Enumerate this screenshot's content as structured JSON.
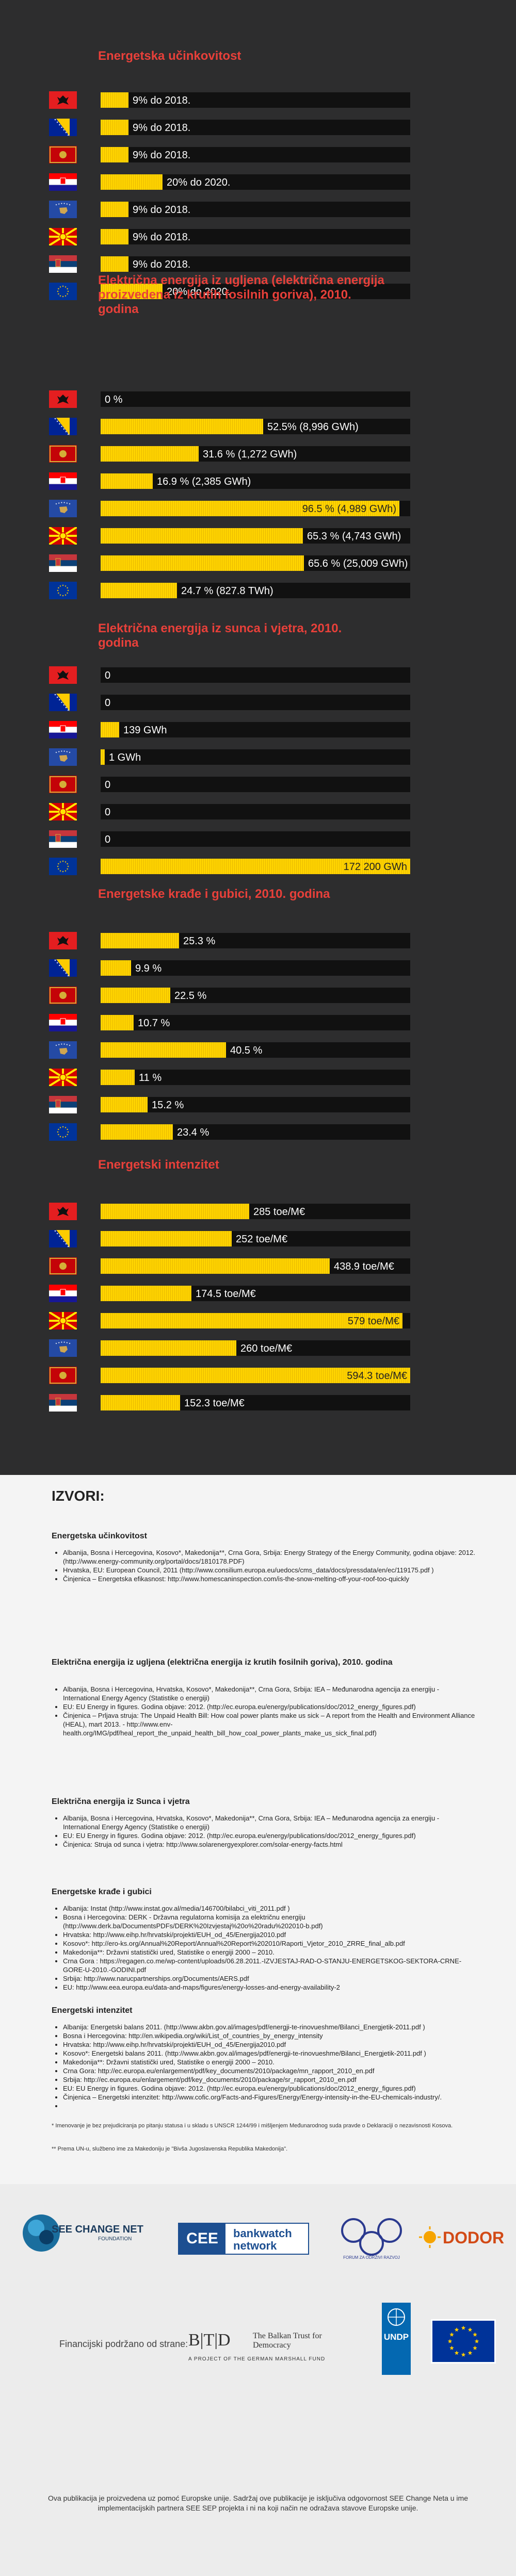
{
  "sections": [
    {
      "title": "Energetska učinkovitost",
      "rows": [
        {
          "flag": "albania",
          "pct": 0.09,
          "label": "9% do 2018."
        },
        {
          "flag": "bih",
          "pct": 0.09,
          "label": "9% do 2018."
        },
        {
          "flag": "montenegro",
          "pct": 0.09,
          "label": "9% do 2018."
        },
        {
          "flag": "croatia",
          "pct": 0.2,
          "label": "20% do 2020."
        },
        {
          "flag": "kosovo",
          "pct": 0.09,
          "label": "9% do 2018."
        },
        {
          "flag": "macedonia",
          "pct": 0.09,
          "label": "9% do 2018."
        },
        {
          "flag": "serbia",
          "pct": 0.09,
          "label": "9% do 2018."
        },
        {
          "flag": "eu",
          "pct": 0.2,
          "label": "20% do 2020."
        }
      ]
    },
    {
      "title": "Električna energija iz ugljena (električna energija proizvedena iz krutih fosilnih goriva), 2010. godina",
      "rows": [
        {
          "flag": "albania",
          "pct": 0.0,
          "label": "0 %"
        },
        {
          "flag": "bih",
          "pct": 0.525,
          "label": "52.5% (8,996 GWh)"
        },
        {
          "flag": "montenegro",
          "pct": 0.316,
          "label": "31.6 % (1,272 GWh)"
        },
        {
          "flag": "croatia",
          "pct": 0.169,
          "label": "16.9 % (2,385 GWh)"
        },
        {
          "flag": "kosovo",
          "pct": 0.965,
          "label": "96.5 % (4,989 GWh)"
        },
        {
          "flag": "macedonia",
          "pct": 0.653,
          "label": "65.3 % (4,743 GWh)"
        },
        {
          "flag": "serbia",
          "pct": 0.656,
          "label": "65.6 % (25,009 GWh)"
        },
        {
          "flag": "eu",
          "pct": 0.247,
          "label": "24.7 % (827.8 TWh)"
        }
      ]
    },
    {
      "title": "Električna energija iz sunca i vjetra, 2010. godina",
      "rows": [
        {
          "flag": "albania",
          "pct": 0.0,
          "label": "0"
        },
        {
          "flag": "bih",
          "pct": 0.0,
          "label": "0"
        },
        {
          "flag": "croatia",
          "pct": 0.06,
          "label": "139 GWh"
        },
        {
          "flag": "kosovo",
          "pct": 0.005,
          "label": "1 GWh"
        },
        {
          "flag": "montenegro",
          "pct": 0.0,
          "label": "0"
        },
        {
          "flag": "macedonia",
          "pct": 0.0,
          "label": "0"
        },
        {
          "flag": "serbia",
          "pct": 0.0,
          "label": "0"
        },
        {
          "flag": "eu",
          "pct": 1.0,
          "label": "172 200 GWh"
        }
      ]
    },
    {
      "title": "Energetske krađe i gubici, 2010. godina",
      "rows": [
        {
          "flag": "albania",
          "pct": 0.253,
          "label": "25.3 %"
        },
        {
          "flag": "bih",
          "pct": 0.099,
          "label": "9.9 %"
        },
        {
          "flag": "montenegro",
          "pct": 0.225,
          "label": "22.5 %"
        },
        {
          "flag": "croatia",
          "pct": 0.107,
          "label": "10.7 %"
        },
        {
          "flag": "kosovo",
          "pct": 0.405,
          "label": "40.5 %"
        },
        {
          "flag": "macedonia",
          "pct": 0.11,
          "label": "11 %"
        },
        {
          "flag": "serbia",
          "pct": 0.152,
          "label": "15.2 %"
        },
        {
          "flag": "eu",
          "pct": 0.234,
          "label": "23.4 %"
        }
      ]
    },
    {
      "title": "Energetski intenzitet",
      "rows": [
        {
          "flag": "albania",
          "pct": 0.48,
          "label": "285 toe/M€"
        },
        {
          "flag": "bih",
          "pct": 0.424,
          "label": "252 toe/M€"
        },
        {
          "flag": "montenegro",
          "pct": 0.74,
          "label": "438.9 toe/M€"
        },
        {
          "flag": "croatia",
          "pct": 0.294,
          "label": "174.5 toe/M€"
        },
        {
          "flag": "macedonia",
          "pct": 0.975,
          "label": "579 toe/M€"
        },
        {
          "flag": "kosovo",
          "pct": 0.438,
          "label": "260 toe/M€"
        },
        {
          "flag": "montenegro2",
          "pct": 1.0,
          "label": "594.3 toe/M€"
        },
        {
          "flag": "serbia",
          "pct": 0.256,
          "label": "152.3 toe/M€"
        }
      ]
    }
  ],
  "sources": {
    "heading": "IZVORI:",
    "groups": [
      {
        "title": "Energetska učinkovitost",
        "items": [
          "Albanija, Bosna i Hercegovina, Kosovo*, Makedonija**, Crna Gora, Srbija: Energy Strategy of the Energy Community, godina objave: 2012. (http://www.energy-community.org/portal/docs/1810178.PDF)",
          "Hrvatska, EU: European Council, 2011 (http://www.consilium.europa.eu/uedocs/cms_data/docs/pressdata/en/ec/119175.pdf )",
          "Činjenica – Energetska efikasnost: http://www.homescaninspection.com/is-the-snow-melting-off-your-roof-too-quickly"
        ]
      },
      {
        "title": "Električna energija iz ugljena (električna energija iz krutih fosilnih goriva), 2010. godina",
        "items": [
          "Albanija, Bosna i Hercegovina, Hrvatska, Kosovo*, Makedonija**, Crna Gora, Srbija: IEA – Međunarodna agencija za energiju - International Energy Agency (Statistike o energiji)",
          "EU: EU Energy in figures. Godina objave: 2012. (http://ec.europa.eu/energy/publications/doc/2012_energy_figures.pdf)",
          "Činjenica – Prljava struja: The Unpaid Health Bill: How coal power plants make us sick – A report from the Health and Environment Alliance (HEAL), mart 2013. - http://www.env-health.org/IMG/pdf/heal_report_the_unpaid_health_bill_how_coal_power_plants_make_us_sick_final.pdf)"
        ]
      },
      {
        "title": "Električna energija iz Sunca i vjetra",
        "items": [
          "Albanija, Bosna i Hercegovina, Hrvatska, Kosovo*, Makedonija**, Crna Gora, Srbija: IEA – Međunarodna agencija za energiju - International Energy Agency (Statistike o energiji)",
          "EU: EU Energy in figures. Godina objave: 2012. (http://ec.europa.eu/energy/publications/doc/2012_energy_figures.pdf)",
          "Činjenica: Struja od sunca i vjetra: http://www.solarenergyexplorer.com/solar-energy-facts.html"
        ]
      },
      {
        "title": "Energetske krađe i gubici",
        "items": [
          "Albanija: Instat (http://www.instat.gov.al/media/146700/bilabci_viti_2011.pdf )",
          "Bosna i Hercegovina: DERK - Državna regulatorna komisija za električnu energiju (http://www.derk.ba/DocumentsPDFs/DERK%20Izvjestaj%20o%20radu%202010-b.pdf)",
          "Hrvatska: http://www.eihp.hr/hrvatski/projekti/EUH_od_45/Energija2010.pdf",
          "Kosovo*: http://ero-ks.org/Annual%20Report/Annual%20Report%202010/Raporti_Vjetor_2010_ZRRE_final_alb.pdf",
          "Makedonija**: Državni statistički ured, Statistike o energiji 2000 – 2010.",
          "Crna Gora : https://regagen.co.me/wp-content/uploads/06.28.2011.-IZVJESTAJ-RAD-O-STANJU-ENERGETSKOG-SEKTORA-CRNE-GORE-U-2010.-GODINI.pdf",
          "Srbija: http://www.narucpartnerships.org/Documents/AERS.pdf",
          "EU: http://www.eea.europa.eu/data-and-maps/figures/energy-losses-and-energy-availability-2"
        ]
      },
      {
        "title": "Energetski intenzitet",
        "items": [
          "Albanija: Energetski balans 2011. (http://www.akbn.gov.al/images/pdf/energji-te-rinovueshme/Bilanci_Energjetik-2011.pdf )",
          "Bosna i Hercegovina: http://en.wikipedia.org/wiki/List_of_countries_by_energy_intensity",
          "Hrvatska: http://www.eihp.hr/hrvatski/projekti/EUH_od_45/Energija2010.pdf",
          "Kosovo*: Energetski balans 2011. (http://www.akbn.gov.al/images/pdf/energji-te-rinovueshme/Bilanci_Energjetik-2011.pdf )",
          "Makedonija**: Državni statistički ured, Statistike o energiji 2000 – 2010.",
          "Crna Gora: http://ec.europa.eu/enlargement/pdf/key_documents/2010/package/mn_rapport_2010_en.pdf",
          "Srbija: http://ec.europa.eu/enlargement/pdf/key_documents/2010/package/sr_rapport_2010_en.pdf",
          "EU: EU Energy in figures. Godina objave: 2012. (http://ec.europa.eu/energy/publications/doc/2012_energy_figures.pdf)",
          "Činjenica – Energetski intenzitet: http://www.cofic.org/Facts-and-Figures/Energy/Energy-intensity-in-the-EU-chemicals-industry/.",
          ""
        ]
      }
    ],
    "note1": "* Imenovanje je bez prejudiciranja po pitanju statusa i u skladu s UNSCR 1244/99 i mišljenjem Međunarodnog suda pravde o Deklaraciji o nezavisnosti Kosova.",
    "note2": "** Prema UN-u, službeno ime za Makedoniju je \"Bivša Jugoslavenska Republika Makedonija\"."
  },
  "footer": {
    "logo1": "SEE CHANGE NET",
    "logo1_sub": "FOUNDATION",
    "logo2_a": "CEE",
    "logo2_b": "bankwatch",
    "logo2_c": "network",
    "logo3": "FORUM ZA ODRŽIVI RAZVOJ",
    "logo4": "DODOR",
    "funded": "Financijski podržano od strane:",
    "btd_mark": "B|T|D",
    "btd_name": "The Balkan Trust for Democracy",
    "btd_sub": "A PROJECT OF THE GERMAN MARSHALL FUND",
    "undp": "UNDP",
    "disclaimer": "Ova publikacija je proizvedena uz pomoć Europske unije. Sadržaj ove publikacije je isključiva odgovornost SEE Change Neta u ime implementacijskih partnera SEE SEP projekta i ni na koji način ne odražava stavove Europske unije."
  }
}
